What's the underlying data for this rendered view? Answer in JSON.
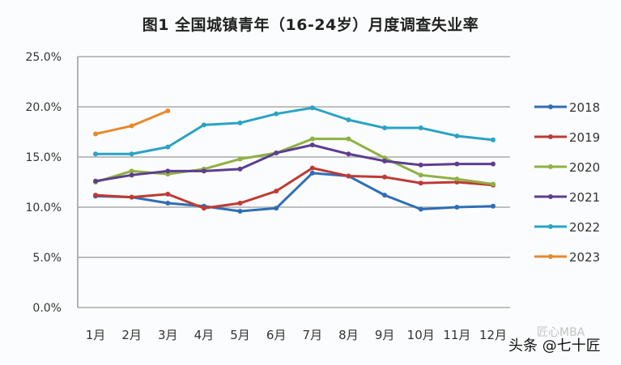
{
  "chart_data": {
    "type": "line",
    "title": "图1 全国城镇青年（16-24岁）月度调查失业率",
    "xlabel": "",
    "ylabel": "",
    "categories": [
      "1月",
      "2月",
      "3月",
      "4月",
      "5月",
      "6月",
      "7月",
      "8月",
      "9月",
      "10月",
      "11月",
      "12月"
    ],
    "yticks": [
      "0.0%",
      "5.0%",
      "10.0%",
      "15.0%",
      "20.0%",
      "25.0%"
    ],
    "ylim": [
      0,
      25
    ],
    "grid": true,
    "legend_position": "right",
    "series": [
      {
        "name": "2018",
        "color": "#2f6eb5",
        "values": [
          11.1,
          11.0,
          10.4,
          10.1,
          9.6,
          9.9,
          13.4,
          13.1,
          11.2,
          9.8,
          10.0,
          10.1
        ]
      },
      {
        "name": "2019",
        "color": "#be3a34",
        "values": [
          11.2,
          11.0,
          11.3,
          9.9,
          10.4,
          11.6,
          13.9,
          13.1,
          13.0,
          12.4,
          12.5,
          12.2
        ]
      },
      {
        "name": "2020",
        "color": "#8fb043",
        "values": [
          12.5,
          13.6,
          13.3,
          13.8,
          14.8,
          15.4,
          16.8,
          16.8,
          14.9,
          13.2,
          12.8,
          12.3
        ]
      },
      {
        "name": "2021",
        "color": "#5d3e8f",
        "values": [
          12.6,
          13.2,
          13.6,
          13.6,
          13.8,
          15.4,
          16.2,
          15.3,
          14.6,
          14.2,
          14.3,
          14.3
        ]
      },
      {
        "name": "2022",
        "color": "#2aa3c4",
        "values": [
          15.3,
          15.3,
          16.0,
          18.2,
          18.4,
          19.3,
          19.9,
          18.7,
          17.9,
          17.9,
          17.1,
          16.7
        ]
      },
      {
        "name": "2023",
        "color": "#e68a2e",
        "values": [
          17.3,
          18.1,
          19.6,
          null,
          null,
          null,
          null,
          null,
          null,
          null,
          null,
          null
        ]
      }
    ]
  },
  "watermark": {
    "text": "头条 @七十匠",
    "faint_text": "匠心MBA"
  }
}
